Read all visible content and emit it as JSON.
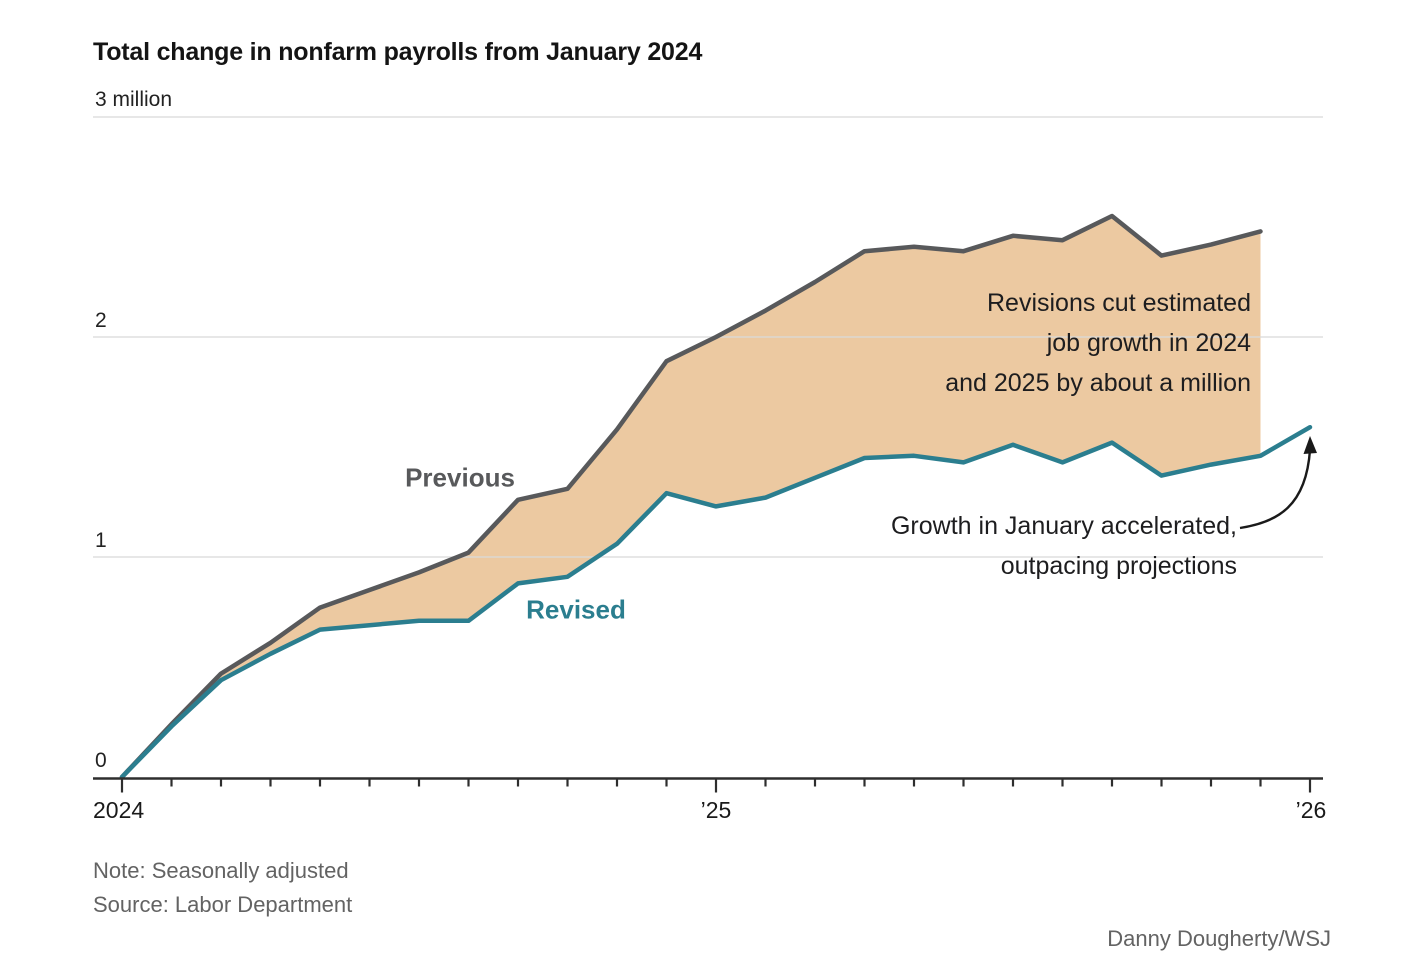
{
  "title": "Total change in nonfarm payrolls from January 2024",
  "note": "Note: Seasonally adjusted",
  "source": "Source: Labor Department",
  "credit": "Danny Dougherty/WSJ",
  "annotations": {
    "revisions": {
      "lines": [
        "Revisions cut estimated",
        "job growth in 2024",
        "and 2025 by about a million"
      ]
    },
    "january": {
      "lines": [
        "Growth in January accelerated,",
        "outpacing projections"
      ]
    }
  },
  "colors": {
    "previous_line": "#58595b",
    "revised_line": "#2b7e8f",
    "band_fill": "#ecc9a1",
    "gridline": "#d9d9d9",
    "axis": "#2e2e2e",
    "arrow": "#1a1a1a"
  },
  "chart_data": {
    "type": "line",
    "title": "Total change in nonfarm payrolls from January 2024",
    "ylabel": "million",
    "ylim": [
      0,
      3
    ],
    "grid": true,
    "y_axis": {
      "tick_labels": [
        "3 million",
        "2",
        "1",
        "0"
      ],
      "tick_values": [
        3,
        2,
        1,
        0
      ]
    },
    "x_axis": {
      "tick_labels": [
        "2024",
        "’25",
        "’26"
      ],
      "minor_ticks": "monthly"
    },
    "x": [
      "Jan 2024",
      "Feb 2024",
      "Mar 2024",
      "Apr 2024",
      "May 2024",
      "Jun 2024",
      "Jul 2024",
      "Aug 2024",
      "Sep 2024",
      "Oct 2024",
      "Nov 2024",
      "Dec 2024",
      "Jan 2025",
      "Feb 2025",
      "Mar 2025",
      "Apr 2025",
      "May 2025",
      "Jun 2025",
      "Jul 2025",
      "Aug 2025",
      "Sep 2025",
      "Oct 2025",
      "Nov 2025",
      "Dec 2025",
      "Jan 2026"
    ],
    "series": [
      {
        "name": "Previous",
        "color": "#58595b",
        "values": [
          0,
          0.24,
          0.47,
          0.61,
          0.77,
          0.85,
          0.93,
          1.02,
          1.26,
          1.31,
          1.58,
          1.89,
          2.0,
          2.12,
          2.25,
          2.39,
          2.41,
          2.39,
          2.46,
          2.44,
          2.55,
          2.37,
          2.42,
          2.48,
          null
        ]
      },
      {
        "name": "Revised",
        "color": "#2b7e8f",
        "values": [
          0,
          0.23,
          0.44,
          0.56,
          0.67,
          0.69,
          0.71,
          0.71,
          0.88,
          0.91,
          1.06,
          1.29,
          1.23,
          1.27,
          1.36,
          1.45,
          1.46,
          1.43,
          1.51,
          1.43,
          1.52,
          1.37,
          1.42,
          1.46,
          1.59
        ]
      }
    ],
    "band_between_series": true,
    "legend_labels_on_chart": [
      "Previous",
      "Revised"
    ]
  }
}
